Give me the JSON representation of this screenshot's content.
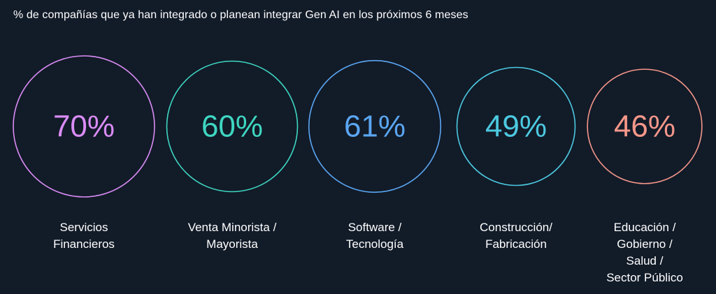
{
  "chart_data": {
    "type": "bubble",
    "title": "% de compañías que ya han integrado o planean integrar Gen AI en los próximos 6 meses",
    "categories": [
      "Servicios\nFinancieros",
      "Venta Minorista /\nMayorista",
      "Software /\nTecnología",
      "Construcción/\nFabricación",
      "Educación /\nGobierno /\nSalud /\nSector Público"
    ],
    "values": [
      70,
      60,
      61,
      49,
      46
    ],
    "value_labels": [
      "70%",
      "60%",
      "61%",
      "49%",
      "46%"
    ],
    "colors": [
      "#d98cf5",
      "#3ed6c1",
      "#5aa6f2",
      "#4cc9e0",
      "#f5978a"
    ],
    "unit": "%"
  }
}
